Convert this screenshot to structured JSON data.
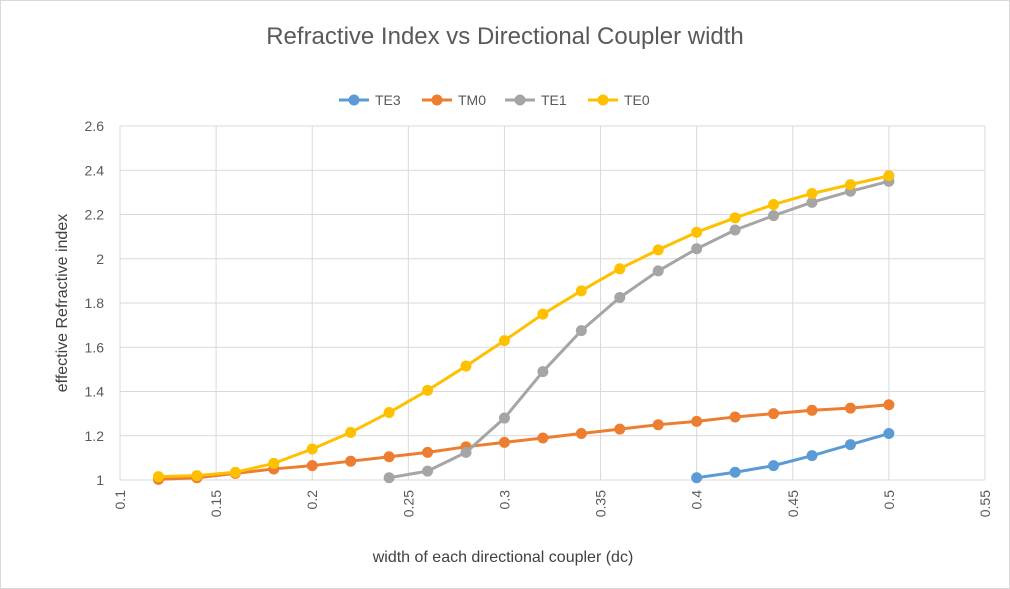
{
  "chart_data": {
    "type": "line",
    "title": "Refractive Index vs Directional Coupler width",
    "xlabel": "width of each directional coupler (dc)",
    "ylabel": "effective Refractive index",
    "xlim": [
      0.1,
      0.55
    ],
    "ylim": [
      1,
      2.6
    ],
    "xticks": [
      "0.1",
      "0.15",
      "0.2",
      "0.25",
      "0.3",
      "0.35",
      "0.4",
      "0.45",
      "0.5",
      "0.55"
    ],
    "yticks": [
      "1",
      "1.2",
      "1.4",
      "1.6",
      "1.8",
      "2",
      "2.2",
      "2.4",
      "2.6"
    ],
    "grid": true,
    "legend_position": "top",
    "series": [
      {
        "name": "TE3",
        "color": "#5B9BD5",
        "x": [
          0.4,
          0.42,
          0.44,
          0.46,
          0.48,
          0.5
        ],
        "y": [
          1.01,
          1.035,
          1.065,
          1.11,
          1.16,
          1.21
        ]
      },
      {
        "name": "TM0",
        "color": "#ED7D31",
        "x": [
          0.12,
          0.14,
          0.16,
          0.18,
          0.2,
          0.22,
          0.24,
          0.26,
          0.28,
          0.3,
          0.32,
          0.34,
          0.36,
          0.38,
          0.4,
          0.42,
          0.44,
          0.46,
          0.48,
          0.5
        ],
        "y": [
          1.003,
          1.01,
          1.03,
          1.05,
          1.065,
          1.085,
          1.105,
          1.125,
          1.15,
          1.17,
          1.19,
          1.21,
          1.23,
          1.25,
          1.265,
          1.285,
          1.3,
          1.315,
          1.325,
          1.34
        ]
      },
      {
        "name": "TE1",
        "color": "#A5A5A5",
        "x": [
          0.24,
          0.26,
          0.28,
          0.3,
          0.32,
          0.34,
          0.36,
          0.38,
          0.4,
          0.42,
          0.44,
          0.46,
          0.48,
          0.5
        ],
        "y": [
          1.01,
          1.04,
          1.125,
          1.28,
          1.49,
          1.675,
          1.825,
          1.945,
          2.045,
          2.13,
          2.195,
          2.255,
          2.305,
          2.35
        ]
      },
      {
        "name": "TE0",
        "color": "#FFC000",
        "x": [
          0.12,
          0.14,
          0.16,
          0.18,
          0.2,
          0.22,
          0.24,
          0.26,
          0.28,
          0.3,
          0.32,
          0.34,
          0.36,
          0.38,
          0.4,
          0.42,
          0.44,
          0.46,
          0.48,
          0.5
        ],
        "y": [
          1.015,
          1.02,
          1.035,
          1.075,
          1.14,
          1.215,
          1.305,
          1.405,
          1.515,
          1.63,
          1.75,
          1.855,
          1.955,
          2.04,
          2.12,
          2.185,
          2.245,
          2.295,
          2.335,
          2.375
        ]
      }
    ]
  }
}
